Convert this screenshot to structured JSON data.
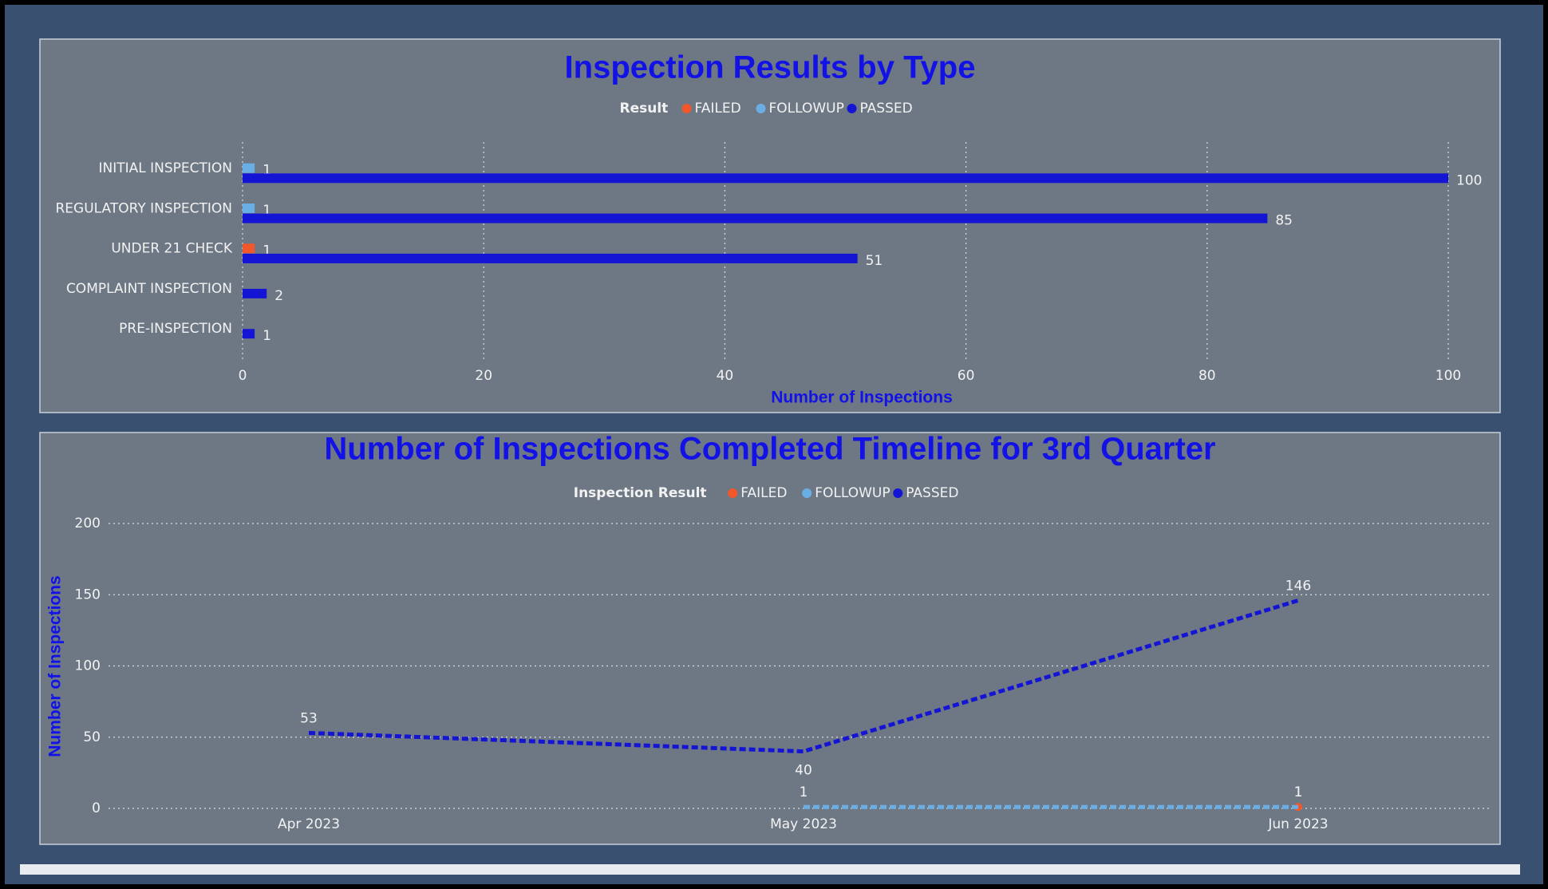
{
  "chart_data": [
    {
      "type": "hbar",
      "title": "Inspection Results by Type",
      "legend_title": "Result",
      "categories": [
        "INITIAL INSPECTION",
        "REGULATORY INSPECTION",
        "UNDER 21 CHECK",
        "COMPLAINT INSPECTION",
        "PRE-INSPECTION"
      ],
      "series": [
        {
          "name": "FAILED",
          "color": "#f2572b",
          "values": [
            null,
            null,
            1,
            null,
            null
          ]
        },
        {
          "name": "FOLLOWUP",
          "color": "#6aaee6",
          "values": [
            1,
            1,
            null,
            null,
            null
          ]
        },
        {
          "name": "PASSED",
          "color": "#1414d4",
          "values": [
            100,
            85,
            51,
            2,
            1
          ]
        }
      ],
      "xlim": [
        0,
        100
      ],
      "xticks": [
        0,
        20,
        40,
        60,
        80,
        100
      ],
      "xlabel": "Number of Inspections",
      "grid": true
    },
    {
      "type": "line",
      "title": "Number of Inspections Completed Timeline for 3rd Quarter",
      "legend_title": "Inspection Result",
      "categories": [
        "Apr 2023",
        "May 2023",
        "Jun 2023"
      ],
      "series": [
        {
          "name": "FAILED",
          "color": "#f2572b",
          "values": [
            null,
            null,
            1
          ]
        },
        {
          "name": "FOLLOWUP",
          "color": "#6aaee6",
          "values": [
            null,
            1,
            1
          ]
        },
        {
          "name": "PASSED",
          "color": "#1414d4",
          "values": [
            53,
            40,
            146
          ]
        }
      ],
      "ylim": [
        0,
        200
      ],
      "yticks": [
        0,
        50,
        100,
        150,
        200
      ],
      "ylabel": "Number of Inspections",
      "grid": true
    }
  ]
}
